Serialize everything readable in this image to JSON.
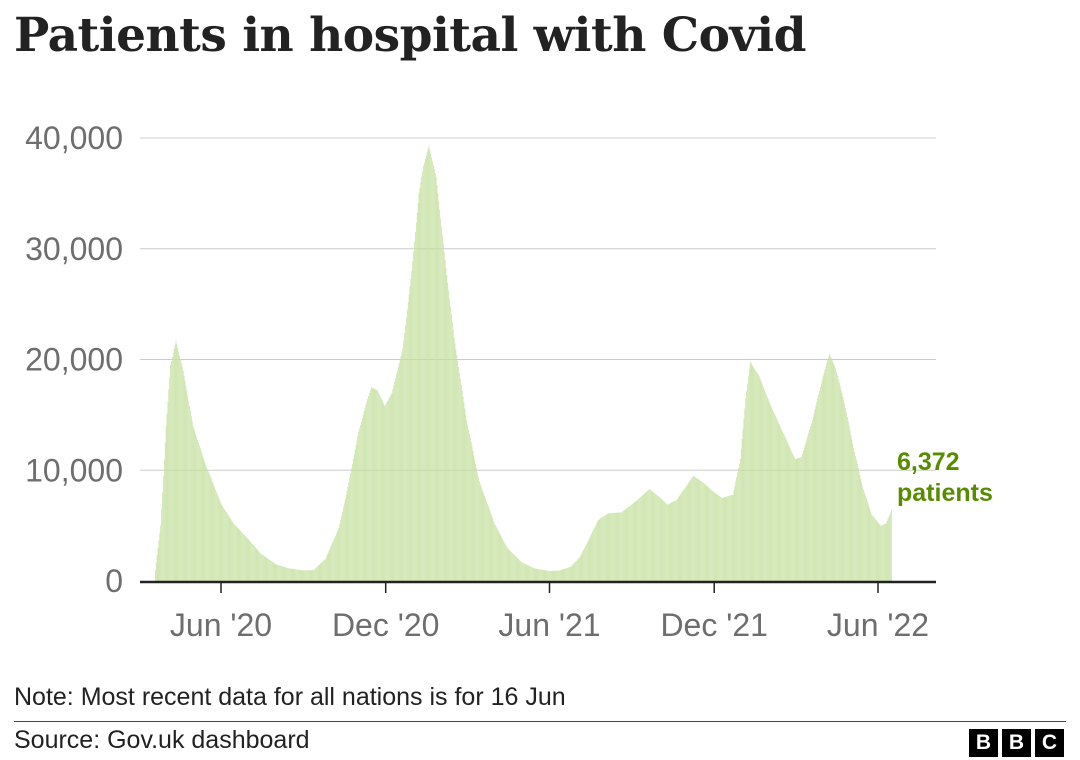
{
  "chart_data": {
    "type": "bar",
    "title": "Patients in hospital with Covid",
    "ylim": [
      0,
      40000
    ],
    "y_ticks": [
      "0",
      "10,000",
      "20,000",
      "30,000",
      "40,000"
    ],
    "x_tick_labels": [
      "Jun '20",
      "Dec '20",
      "Jun '21",
      "Dec '21",
      "Jun '22"
    ],
    "grid": true,
    "bar_color": "#c5e0a0",
    "accent_color": "#588c00",
    "annotation": {
      "value": "6,372",
      "unit": "patients"
    },
    "series": [
      {
        "x_start": "2020-03-20",
        "interval": "daily",
        "key_points": [
          [
            "2020-03-20",
            1000
          ],
          [
            "2020-03-26",
            5000
          ],
          [
            "2020-04-01",
            14000
          ],
          [
            "2020-04-06",
            19500
          ],
          [
            "2020-04-12",
            21700
          ],
          [
            "2020-04-20",
            19000
          ],
          [
            "2020-05-01",
            14000
          ],
          [
            "2020-05-15",
            10500
          ],
          [
            "2020-06-01",
            7000
          ],
          [
            "2020-06-15",
            5200
          ],
          [
            "2020-07-01",
            3800
          ],
          [
            "2020-07-15",
            2500
          ],
          [
            "2020-08-01",
            1500
          ],
          [
            "2020-08-15",
            1150
          ],
          [
            "2020-09-01",
            950
          ],
          [
            "2020-09-12",
            1000
          ],
          [
            "2020-09-25",
            2000
          ],
          [
            "2020-10-10",
            4800
          ],
          [
            "2020-10-20",
            8500
          ],
          [
            "2020-11-01",
            13500
          ],
          [
            "2020-11-10",
            16200
          ],
          [
            "2020-11-15",
            17500
          ],
          [
            "2020-11-22",
            17200
          ],
          [
            "2020-11-30",
            15800
          ],
          [
            "2020-12-08",
            17000
          ],
          [
            "2020-12-20",
            21000
          ],
          [
            "2020-12-30",
            28000
          ],
          [
            "2021-01-07",
            35000
          ],
          [
            "2021-01-12",
            37500
          ],
          [
            "2021-01-18",
            39300
          ],
          [
            "2021-01-26",
            36500
          ],
          [
            "2021-02-05",
            29000
          ],
          [
            "2021-02-15",
            22000
          ],
          [
            "2021-03-01",
            14500
          ],
          [
            "2021-03-15",
            9000
          ],
          [
            "2021-04-01",
            5200
          ],
          [
            "2021-04-15",
            3000
          ],
          [
            "2021-05-01",
            1700
          ],
          [
            "2021-05-15",
            1150
          ],
          [
            "2021-06-01",
            900
          ],
          [
            "2021-06-12",
            950
          ],
          [
            "2021-06-25",
            1300
          ],
          [
            "2021-07-05",
            2200
          ],
          [
            "2021-07-15",
            3800
          ],
          [
            "2021-07-25",
            5500
          ],
          [
            "2021-08-05",
            6100
          ],
          [
            "2021-08-20",
            6200
          ],
          [
            "2021-09-05",
            7200
          ],
          [
            "2021-09-20",
            8300
          ],
          [
            "2021-10-01",
            7600
          ],
          [
            "2021-10-10",
            6900
          ],
          [
            "2021-10-20",
            7300
          ],
          [
            "2021-11-01",
            8700
          ],
          [
            "2021-11-08",
            9500
          ],
          [
            "2021-11-20",
            8800
          ],
          [
            "2021-12-01",
            8000
          ],
          [
            "2021-12-10",
            7500
          ],
          [
            "2021-12-22",
            7800
          ],
          [
            "2021-12-30",
            11000
          ],
          [
            "2022-01-05",
            16500
          ],
          [
            "2022-01-10",
            19800
          ],
          [
            "2022-01-20",
            18500
          ],
          [
            "2022-02-01",
            16000
          ],
          [
            "2022-02-15",
            13500
          ],
          [
            "2022-03-01",
            11000
          ],
          [
            "2022-03-08",
            11200
          ],
          [
            "2022-03-20",
            14500
          ],
          [
            "2022-04-01",
            18500
          ],
          [
            "2022-04-08",
            20500
          ],
          [
            "2022-04-15",
            19200
          ],
          [
            "2022-04-25",
            16000
          ],
          [
            "2022-05-05",
            12000
          ],
          [
            "2022-05-15",
            8500
          ],
          [
            "2022-05-25",
            6000
          ],
          [
            "2022-06-04",
            5000
          ],
          [
            "2022-06-10",
            5200
          ],
          [
            "2022-06-16",
            6372
          ]
        ]
      }
    ]
  },
  "note": "Note: Most recent data for all nations is for 16 Jun",
  "source": "Source: Gov.uk dashboard",
  "logo_letters": [
    "B",
    "B",
    "C"
  ]
}
